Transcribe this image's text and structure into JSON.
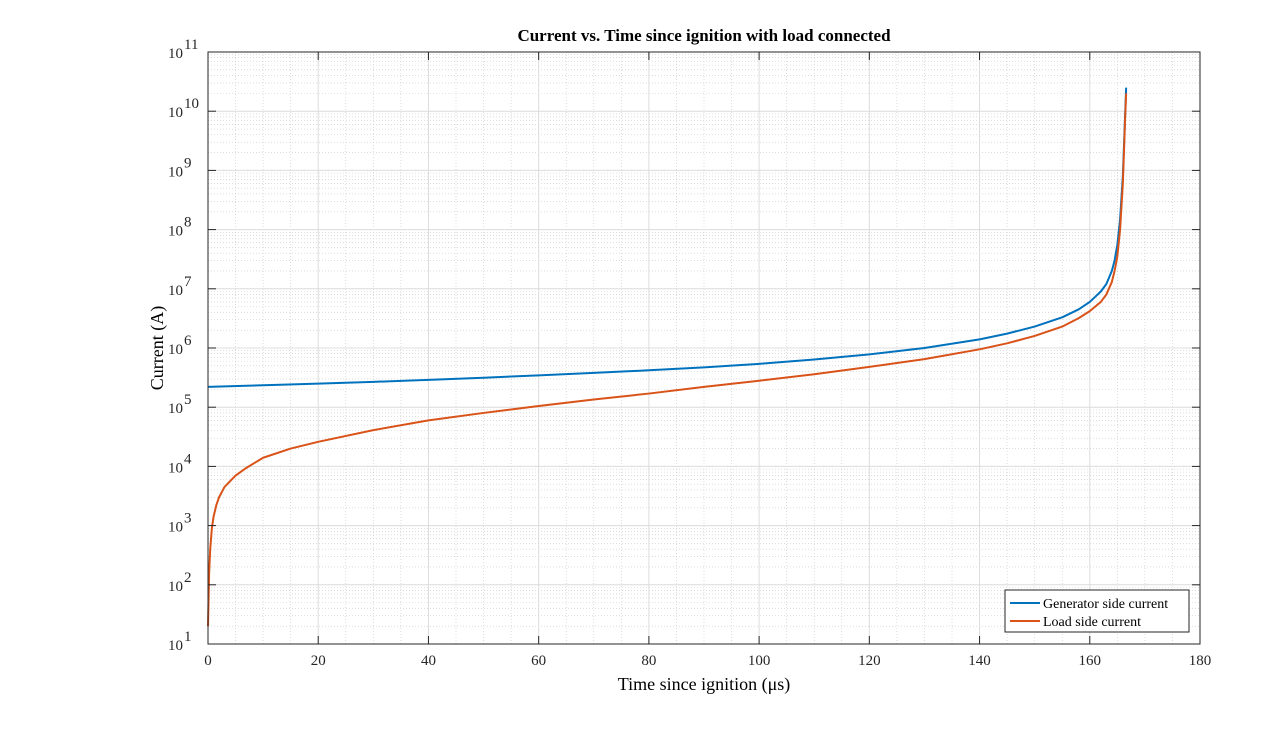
{
  "chart_data": {
    "type": "line",
    "title": "Current vs. Time since ignition with load connected",
    "xlabel": "Time since ignition (μs)",
    "ylabel": "Current (A)",
    "xlim": [
      0,
      180
    ],
    "ylim": [
      10,
      100000000000
    ],
    "yscale": "log",
    "grid": true,
    "minor_grid": true,
    "legend_position": "bottom-right",
    "x_ticks": [
      0,
      20,
      40,
      60,
      80,
      100,
      120,
      140,
      160,
      180
    ],
    "y_tick_exponents": [
      1,
      2,
      3,
      4,
      5,
      6,
      7,
      8,
      9,
      10,
      11
    ],
    "series": [
      {
        "name": "Generator side current",
        "color": "#0072BD",
        "x": [
          0,
          10,
          20,
          30,
          40,
          50,
          60,
          70,
          80,
          90,
          100,
          110,
          120,
          130,
          140,
          145,
          150,
          155,
          158,
          160,
          162,
          163,
          164,
          164.5,
          165,
          165.5,
          166,
          166.2,
          166.4,
          166.6
        ],
        "y": [
          220000,
          235000,
          250000,
          268000,
          290000,
          315000,
          345000,
          380000,
          420000,
          470000,
          540000,
          640000,
          780000,
          1000000,
          1400000,
          1750000,
          2300000,
          3300000,
          4500000,
          6000000,
          9000000,
          12000000,
          20000000,
          30000000,
          55000000,
          150000000,
          800000000,
          2500000000,
          8000000000,
          25000000000
        ]
      },
      {
        "name": "Load side current",
        "color": "#D95319",
        "x": [
          0,
          0.2,
          0.4,
          0.7,
          1,
          1.5,
          2,
          3,
          5,
          7,
          10,
          15,
          20,
          30,
          40,
          50,
          60,
          70,
          80,
          90,
          100,
          110,
          120,
          130,
          140,
          145,
          150,
          155,
          158,
          160,
          162,
          163,
          164,
          164.5,
          165,
          165.5,
          166,
          166.2,
          166.4,
          166.6
        ],
        "y": [
          20,
          150,
          400,
          900,
          1400,
          2200,
          3000,
          4500,
          7000,
          9500,
          14000,
          20000,
          26000,
          41000,
          60000,
          80000,
          105000,
          135000,
          170000,
          220000,
          280000,
          360000,
          480000,
          650000,
          950000,
          1200000,
          1600000,
          2300000,
          3200000,
          4200000,
          6000000,
          8000000,
          13000000,
          20000000,
          35000000,
          100000000,
          600000000,
          2000000000,
          7000000000,
          20000000000
        ]
      }
    ]
  }
}
